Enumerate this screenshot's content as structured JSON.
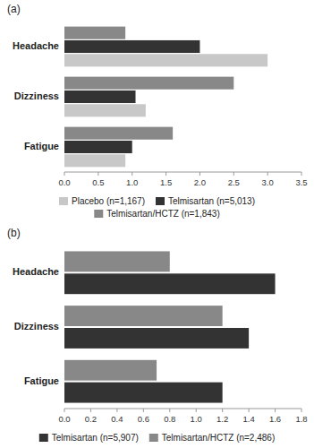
{
  "chart_data": [
    {
      "type": "bar",
      "orientation": "horizontal",
      "title": "(a)",
      "categories": [
        "Fatigue",
        "Dizziness",
        "Headache"
      ],
      "series": [
        {
          "name": "Placebo (n=1,167)",
          "color": "#c8c8c8",
          "values": [
            0.9,
            1.2,
            3.0
          ]
        },
        {
          "name": "Telmisartan (n=5,013)",
          "color": "#333333",
          "values": [
            1.0,
            1.05,
            2.0
          ]
        },
        {
          "name": "Telmisartan/HCTZ (n=1,843)",
          "color": "#888888",
          "values": [
            1.6,
            2.5,
            0.9
          ]
        }
      ],
      "xlim": [
        0,
        3.5
      ],
      "xticks": [
        {
          "value": 0,
          "label": "0.0"
        },
        0.5,
        {
          "value": 1.0,
          "label": "1.0"
        },
        1.5,
        {
          "value": 2.0,
          "label": "2.0"
        },
        2.5,
        {
          "value": 3.0,
          "label": "3.0"
        },
        3.5
      ],
      "grid": false,
      "legend": "bottom"
    },
    {
      "type": "bar",
      "orientation": "horizontal",
      "title": "(b)",
      "categories": [
        "Fatigue",
        "Dizziness",
        "Headache"
      ],
      "series": [
        {
          "name": "Telmisartan (n=5,907)",
          "color": "#333333",
          "values": [
            1.2,
            1.4,
            1.6
          ]
        },
        {
          "name": "Telmisartan/HCTZ (n=2,486)",
          "color": "#888888",
          "values": [
            0.7,
            1.2,
            0.8
          ]
        }
      ],
      "xlim": [
        0,
        1.8
      ],
      "xticks": [
        {
          "value": 0,
          "label": "0.0"
        },
        0.2,
        0.4,
        0.6,
        0.8,
        {
          "value": 1.0,
          "label": "1.0"
        },
        1.2,
        1.4,
        1.6,
        1.8
      ],
      "grid": false,
      "legend": "bottom"
    }
  ]
}
